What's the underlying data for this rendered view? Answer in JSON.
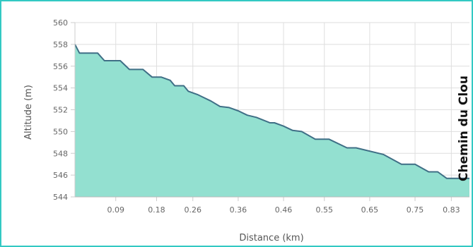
{
  "chart_data": {
    "type": "area",
    "xlabel": "Distance (km)",
    "ylabel": "Altitude (m)",
    "xlim": [
      0.0,
      0.87
    ],
    "ylim": [
      544,
      560
    ],
    "x_ticks": [
      0.09,
      0.18,
      0.26,
      0.36,
      0.46,
      0.55,
      0.65,
      0.75,
      0.83
    ],
    "y_ticks": [
      544,
      546,
      548,
      550,
      552,
      554,
      556,
      558,
      560
    ],
    "x_tick_labels": [
      "0.09",
      "0.18",
      "0.26",
      "0.36",
      "0.46",
      "0.55",
      "0.65",
      "0.75",
      "0.83"
    ],
    "y_tick_labels": [
      "544",
      "546",
      "548",
      "550",
      "552",
      "554",
      "556",
      "558",
      "560"
    ],
    "grid": true,
    "colors": {
      "fill": "#93e0d0",
      "line": "#3f6f86"
    },
    "series": [
      {
        "x": [
          0.0,
          0.01,
          0.03,
          0.05,
          0.065,
          0.08,
          0.1,
          0.12,
          0.14,
          0.15,
          0.17,
          0.19,
          0.21,
          0.22,
          0.24,
          0.25,
          0.27,
          0.28,
          0.3,
          0.32,
          0.34,
          0.36,
          0.38,
          0.4,
          0.43,
          0.44,
          0.46,
          0.48,
          0.5,
          0.53,
          0.56,
          0.6,
          0.62,
          0.68,
          0.72,
          0.75,
          0.78,
          0.8,
          0.82,
          0.87
        ],
        "y": [
          558.0,
          557.2,
          557.2,
          557.2,
          556.5,
          556.5,
          556.5,
          555.7,
          555.7,
          555.7,
          555.0,
          555.0,
          554.7,
          554.2,
          554.2,
          553.7,
          553.4,
          553.2,
          552.8,
          552.3,
          552.2,
          551.9,
          551.5,
          551.3,
          550.8,
          550.8,
          550.5,
          550.1,
          550.0,
          549.3,
          549.3,
          548.5,
          548.5,
          547.9,
          547.0,
          547.0,
          546.3,
          546.3,
          545.7,
          545.7
        ]
      }
    ],
    "annotation": "Chemin du Clou"
  }
}
